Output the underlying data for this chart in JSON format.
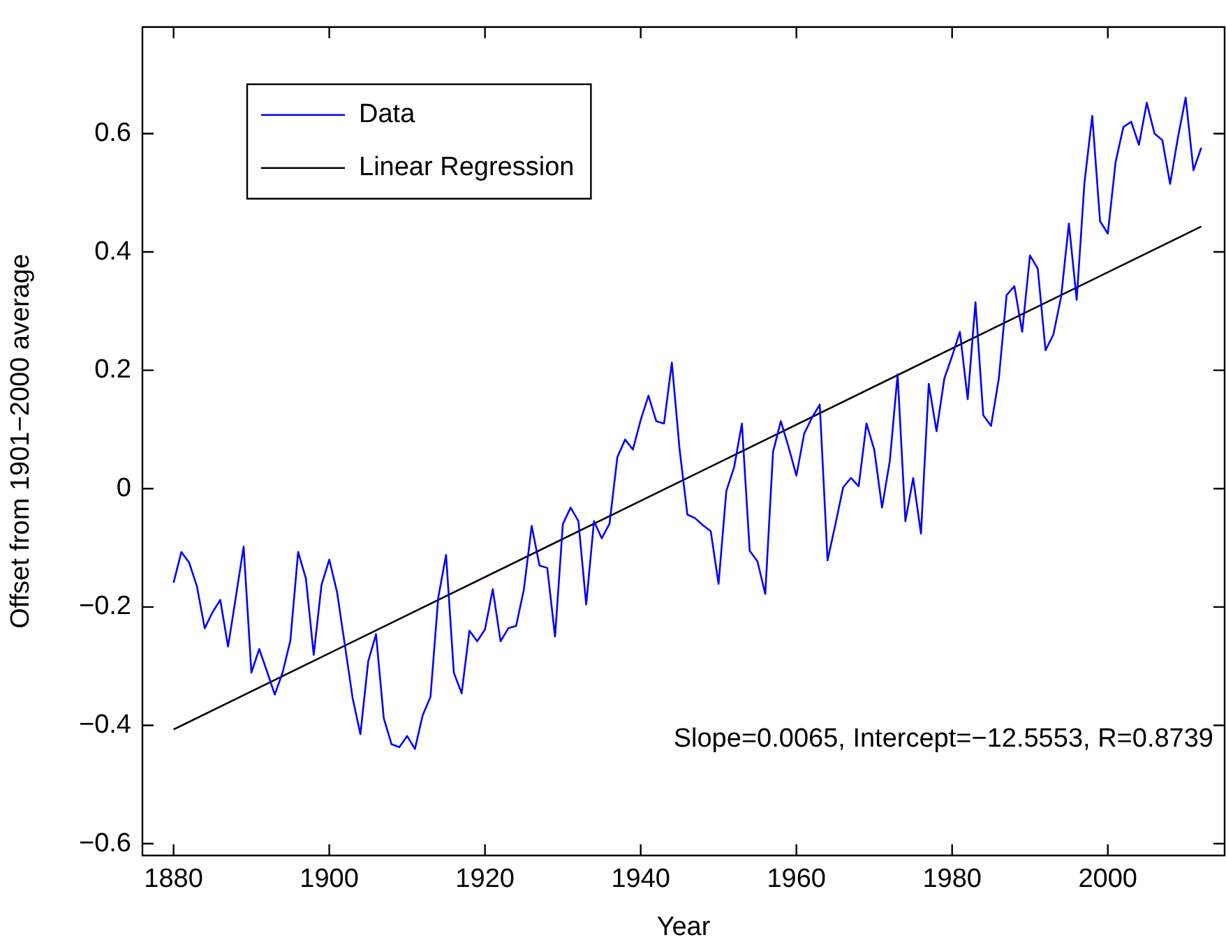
{
  "chart_data": {
    "type": "line",
    "xlabel": "Year",
    "ylabel": "Offset from 1901−2000 average",
    "legend": "top left",
    "grid": false,
    "marker": "none",
    "line_style": "solid",
    "xlim": [
      1876,
      2015
    ],
    "xticks": [
      1880,
      1900,
      1920,
      1940,
      1960,
      1980,
      2000
    ],
    "ylim": [
      -0.62,
      0.78
    ],
    "yticks": [
      {
        "value": -0.6,
        "label": "−0.6"
      },
      {
        "value": -0.4,
        "label": "−0.4"
      },
      {
        "value": -0.2,
        "label": "−0.2"
      },
      0,
      0.2,
      0.4,
      0.6
    ],
    "annotations": [
      "Slope=0.0065, Intercept=−12.5553, R=0.8739"
    ],
    "series": [
      {
        "name": "Data",
        "color": "#0000ff",
        "x": [
          1880,
          1881,
          1882,
          1883,
          1884,
          1885,
          1886,
          1887,
          1888,
          1889,
          1890,
          1891,
          1892,
          1893,
          1894,
          1895,
          1896,
          1897,
          1898,
          1899,
          1900,
          1901,
          1902,
          1903,
          1904,
          1905,
          1906,
          1907,
          1908,
          1909,
          1910,
          1911,
          1912,
          1913,
          1914,
          1915,
          1916,
          1917,
          1918,
          1919,
          1920,
          1921,
          1922,
          1923,
          1924,
          1925,
          1926,
          1927,
          1928,
          1929,
          1930,
          1931,
          1932,
          1933,
          1934,
          1935,
          1936,
          1937,
          1938,
          1939,
          1940,
          1941,
          1942,
          1943,
          1944,
          1945,
          1946,
          1947,
          1948,
          1949,
          1950,
          1951,
          1952,
          1953,
          1954,
          1955,
          1956,
          1957,
          1958,
          1959,
          1960,
          1961,
          1962,
          1963,
          1964,
          1965,
          1966,
          1967,
          1968,
          1969,
          1970,
          1971,
          1972,
          1973,
          1974,
          1975,
          1976,
          1977,
          1978,
          1979,
          1980,
          1981,
          1982,
          1983,
          1984,
          1985,
          1986,
          1987,
          1988,
          1989,
          1990,
          1991,
          1992,
          1993,
          1994,
          1995,
          1996,
          1997,
          1998,
          1999,
          2000,
          2001,
          2002,
          2003,
          2004,
          2005,
          2006,
          2007,
          2008,
          2009,
          2010,
          2011,
          2012
        ],
        "values": [
          -0.159,
          -0.107,
          -0.125,
          -0.165,
          -0.236,
          -0.209,
          -0.188,
          -0.267,
          -0.183,
          -0.098,
          -0.311,
          -0.271,
          -0.309,
          -0.348,
          -0.311,
          -0.257,
          -0.107,
          -0.152,
          -0.281,
          -0.163,
          -0.12,
          -0.175,
          -0.264,
          -0.354,
          -0.415,
          -0.292,
          -0.246,
          -0.388,
          -0.432,
          -0.437,
          -0.418,
          -0.44,
          -0.383,
          -0.352,
          -0.184,
          -0.112,
          -0.311,
          -0.346,
          -0.24,
          -0.258,
          -0.238,
          -0.17,
          -0.258,
          -0.236,
          -0.232,
          -0.17,
          -0.063,
          -0.13,
          -0.134,
          -0.25,
          -0.06,
          -0.032,
          -0.055,
          -0.196,
          -0.055,
          -0.084,
          -0.059,
          0.053,
          0.083,
          0.066,
          0.116,
          0.157,
          0.114,
          0.11,
          0.213,
          0.066,
          -0.044,
          -0.05,
          -0.062,
          -0.072,
          -0.161,
          -0.004,
          0.036,
          0.11,
          -0.105,
          -0.123,
          -0.178,
          0.062,
          0.114,
          0.07,
          0.022,
          0.093,
          0.12,
          0.142,
          -0.121,
          -0.061,
          0.002,
          0.018,
          0.004,
          0.11,
          0.066,
          -0.032,
          0.047,
          0.193,
          -0.055,
          0.018,
          -0.076,
          0.177,
          0.097,
          0.186,
          0.224,
          0.265,
          0.151,
          0.315,
          0.124,
          0.106,
          0.186,
          0.327,
          0.342,
          0.265,
          0.394,
          0.372,
          0.234,
          0.26,
          0.324,
          0.448,
          0.319,
          0.517,
          0.63,
          0.452,
          0.431,
          0.552,
          0.611,
          0.62,
          0.581,
          0.652,
          0.6,
          0.589,
          0.515,
          0.593,
          0.661,
          0.538,
          0.576
        ]
      },
      {
        "name": "Linear Regression",
        "type": "line",
        "color": "#000000",
        "x": [
          1880,
          2012
        ],
        "values": [
          -0.407,
          0.443
        ]
      }
    ]
  }
}
